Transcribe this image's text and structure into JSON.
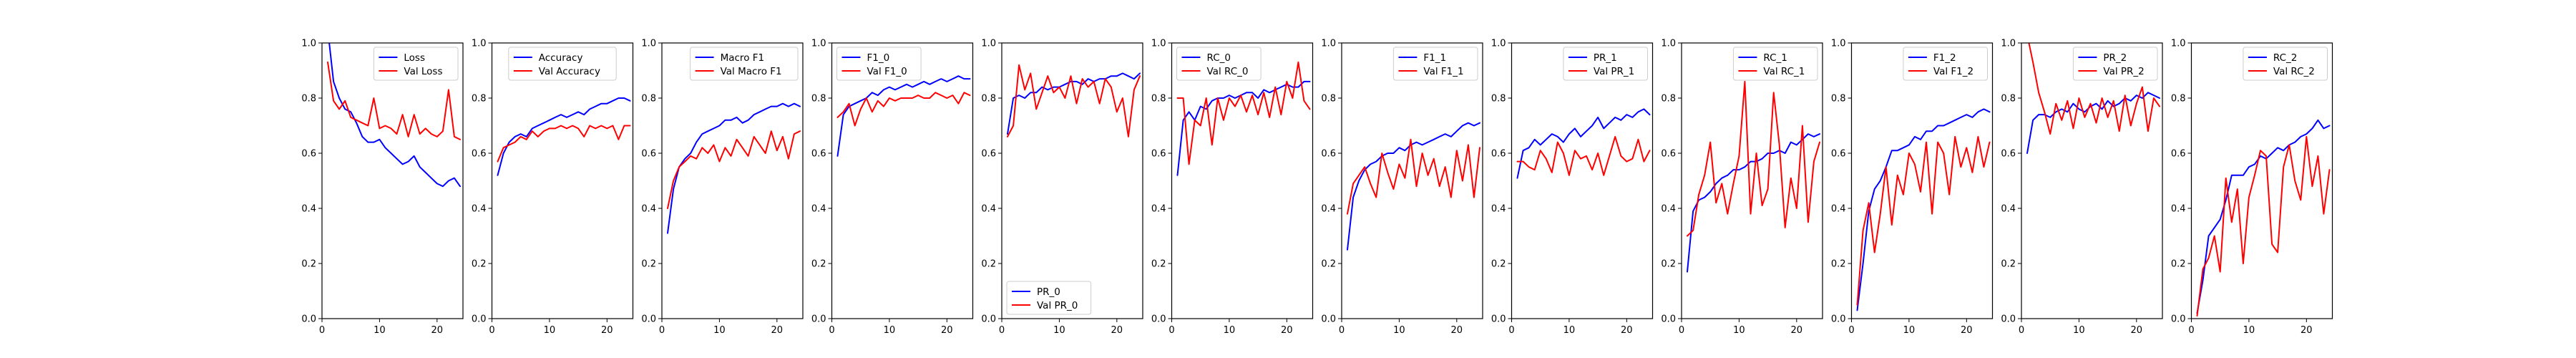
{
  "chart_data": [
    {
      "type": "line",
      "legend_loc": "upper right",
      "xlim": [
        0,
        24.5
      ],
      "ylim": [
        0.0,
        1.0
      ],
      "xticks": [
        0,
        10,
        20
      ],
      "yticks": [
        0.0,
        0.2,
        0.4,
        0.6,
        0.8,
        1.0
      ],
      "xticklabels": [
        "0",
        "10",
        "20"
      ],
      "yticklabels": [
        "0.0",
        "0.2",
        "0.4",
        "0.6",
        "0.8",
        "1.0"
      ],
      "series": [
        {
          "name": "Loss",
          "color": "#0000ff",
          "y": [
            1.05,
            0.86,
            0.8,
            0.76,
            0.75,
            0.71,
            0.66,
            0.64,
            0.64,
            0.65,
            0.62,
            0.6,
            0.58,
            0.56,
            0.57,
            0.59,
            0.55,
            0.53,
            0.51,
            0.49,
            0.48,
            0.5,
            0.51,
            0.48
          ]
        },
        {
          "name": "Val Loss",
          "color": "#ff0000",
          "y": [
            0.93,
            0.79,
            0.76,
            0.79,
            0.73,
            0.72,
            0.71,
            0.7,
            0.8,
            0.69,
            0.7,
            0.69,
            0.67,
            0.74,
            0.66,
            0.74,
            0.67,
            0.69,
            0.67,
            0.66,
            0.68,
            0.83,
            0.66,
            0.65
          ]
        }
      ]
    },
    {
      "type": "line",
      "legend_loc": "upper center",
      "xlim": [
        0,
        24.5
      ],
      "ylim": [
        0.0,
        1.0
      ],
      "xticks": [
        0,
        10,
        20
      ],
      "yticks": [
        0.0,
        0.2,
        0.4,
        0.6,
        0.8,
        1.0
      ],
      "xticklabels": [
        "0",
        "10",
        "20"
      ],
      "yticklabels": [
        "0.0",
        "0.2",
        "0.4",
        "0.6",
        "0.8",
        "1.0"
      ],
      "series": [
        {
          "name": "Accuracy",
          "color": "#0000ff",
          "y": [
            0.52,
            0.6,
            0.64,
            0.66,
            0.67,
            0.66,
            0.69,
            0.7,
            0.71,
            0.72,
            0.73,
            0.74,
            0.73,
            0.74,
            0.75,
            0.74,
            0.76,
            0.77,
            0.78,
            0.78,
            0.79,
            0.8,
            0.8,
            0.79
          ]
        },
        {
          "name": "Val Accuracy",
          "color": "#ff0000",
          "y": [
            0.57,
            0.62,
            0.63,
            0.64,
            0.66,
            0.65,
            0.68,
            0.66,
            0.68,
            0.69,
            0.69,
            0.7,
            0.69,
            0.7,
            0.69,
            0.66,
            0.7,
            0.69,
            0.7,
            0.69,
            0.7,
            0.65,
            0.7,
            0.7
          ]
        }
      ]
    },
    {
      "type": "line",
      "legend_loc": "upper right",
      "xlim": [
        0,
        24.5
      ],
      "ylim": [
        0.0,
        1.0
      ],
      "xticks": [
        0,
        10,
        20
      ],
      "yticks": [
        0.0,
        0.2,
        0.4,
        0.6,
        0.8,
        1.0
      ],
      "xticklabels": [
        "0",
        "10",
        "20"
      ],
      "yticklabels": [
        "0.0",
        "0.2",
        "0.4",
        "0.6",
        "0.8",
        "1.0"
      ],
      "series": [
        {
          "name": "Macro F1",
          "color": "#0000ff",
          "y": [
            0.31,
            0.47,
            0.55,
            0.58,
            0.6,
            0.64,
            0.67,
            0.68,
            0.69,
            0.7,
            0.72,
            0.72,
            0.73,
            0.71,
            0.72,
            0.74,
            0.75,
            0.76,
            0.77,
            0.77,
            0.78,
            0.77,
            0.78,
            0.77
          ]
        },
        {
          "name": "Val Macro F1",
          "color": "#ff0000",
          "y": [
            0.4,
            0.5,
            0.55,
            0.57,
            0.59,
            0.58,
            0.62,
            0.6,
            0.63,
            0.57,
            0.62,
            0.59,
            0.65,
            0.62,
            0.59,
            0.66,
            0.63,
            0.6,
            0.68,
            0.61,
            0.66,
            0.58,
            0.67,
            0.68
          ]
        }
      ]
    },
    {
      "type": "line",
      "legend_loc": "upper left",
      "xlim": [
        0,
        24.5
      ],
      "ylim": [
        0.0,
        1.0
      ],
      "xticks": [
        0,
        10,
        20
      ],
      "yticks": [
        0.0,
        0.2,
        0.4,
        0.6,
        0.8,
        1.0
      ],
      "xticklabels": [
        "0",
        "10",
        "20"
      ],
      "yticklabels": [
        "0.0",
        "0.2",
        "0.4",
        "0.6",
        "0.8",
        "1.0"
      ],
      "series": [
        {
          "name": "F1_0",
          "color": "#0000ff",
          "y": [
            0.59,
            0.74,
            0.77,
            0.78,
            0.79,
            0.8,
            0.82,
            0.81,
            0.83,
            0.84,
            0.83,
            0.84,
            0.85,
            0.84,
            0.85,
            0.86,
            0.85,
            0.86,
            0.87,
            0.86,
            0.87,
            0.88,
            0.87,
            0.87
          ]
        },
        {
          "name": "Val F1_0",
          "color": "#ff0000",
          "y": [
            0.73,
            0.75,
            0.78,
            0.7,
            0.76,
            0.8,
            0.75,
            0.79,
            0.77,
            0.8,
            0.79,
            0.8,
            0.8,
            0.8,
            0.81,
            0.8,
            0.8,
            0.82,
            0.81,
            0.8,
            0.81,
            0.78,
            0.82,
            0.81
          ]
        }
      ]
    },
    {
      "type": "line",
      "legend_loc": "lower left",
      "xlim": [
        0,
        24.5
      ],
      "ylim": [
        0.0,
        1.0
      ],
      "xticks": [
        0,
        10,
        20
      ],
      "yticks": [
        0.0,
        0.2,
        0.4,
        0.6,
        0.8,
        1.0
      ],
      "xticklabels": [
        "0",
        "10",
        "20"
      ],
      "yticklabels": [
        "0.0",
        "0.2",
        "0.4",
        "0.6",
        "0.8",
        "1.0"
      ],
      "series": [
        {
          "name": "PR_0",
          "color": "#0000ff",
          "y": [
            0.67,
            0.8,
            0.81,
            0.8,
            0.82,
            0.82,
            0.84,
            0.83,
            0.84,
            0.84,
            0.85,
            0.86,
            0.86,
            0.85,
            0.87,
            0.86,
            0.87,
            0.87,
            0.88,
            0.88,
            0.89,
            0.88,
            0.87,
            0.89
          ]
        },
        {
          "name": "Val PR_0",
          "color": "#ff0000",
          "y": [
            0.66,
            0.7,
            0.92,
            0.83,
            0.89,
            0.76,
            0.82,
            0.88,
            0.82,
            0.84,
            0.8,
            0.88,
            0.78,
            0.87,
            0.84,
            0.86,
            0.78,
            0.87,
            0.84,
            0.75,
            0.8,
            0.66,
            0.83,
            0.88
          ]
        }
      ]
    },
    {
      "type": "line",
      "legend_loc": "upper left",
      "xlim": [
        0,
        24.5
      ],
      "ylim": [
        0.0,
        1.0
      ],
      "xticks": [
        0,
        10,
        20
      ],
      "yticks": [
        0.0,
        0.2,
        0.4,
        0.6,
        0.8,
        1.0
      ],
      "xticklabels": [
        "0",
        "10",
        "20"
      ],
      "yticklabels": [
        "0.0",
        "0.2",
        "0.4",
        "0.6",
        "0.8",
        "1.0"
      ],
      "series": [
        {
          "name": "RC_0",
          "color": "#0000ff",
          "y": [
            0.52,
            0.72,
            0.75,
            0.72,
            0.77,
            0.76,
            0.79,
            0.8,
            0.8,
            0.81,
            0.8,
            0.81,
            0.82,
            0.82,
            0.8,
            0.83,
            0.82,
            0.83,
            0.84,
            0.85,
            0.84,
            0.84,
            0.86,
            0.86
          ]
        },
        {
          "name": "Val RC_0",
          "color": "#ff0000",
          "y": [
            0.8,
            0.8,
            0.56,
            0.72,
            0.7,
            0.8,
            0.63,
            0.8,
            0.72,
            0.8,
            0.77,
            0.81,
            0.75,
            0.81,
            0.74,
            0.82,
            0.73,
            0.84,
            0.74,
            0.86,
            0.8,
            0.93,
            0.79,
            0.76
          ]
        }
      ]
    },
    {
      "type": "line",
      "legend_loc": "upper right",
      "xlim": [
        0,
        24.5
      ],
      "ylim": [
        0.0,
        1.0
      ],
      "xticks": [
        0,
        10,
        20
      ],
      "yticks": [
        0.0,
        0.2,
        0.4,
        0.6,
        0.8,
        1.0
      ],
      "xticklabels": [
        "0",
        "10",
        "20"
      ],
      "yticklabels": [
        "0.0",
        "0.2",
        "0.4",
        "0.6",
        "0.8",
        "1.0"
      ],
      "series": [
        {
          "name": "F1_1",
          "color": "#0000ff",
          "y": [
            0.25,
            0.44,
            0.5,
            0.54,
            0.56,
            0.57,
            0.59,
            0.6,
            0.6,
            0.62,
            0.61,
            0.63,
            0.64,
            0.63,
            0.64,
            0.65,
            0.66,
            0.67,
            0.66,
            0.68,
            0.7,
            0.71,
            0.7,
            0.71
          ]
        },
        {
          "name": "Val F1_1",
          "color": "#ff0000",
          "y": [
            0.38,
            0.49,
            0.52,
            0.55,
            0.49,
            0.44,
            0.6,
            0.53,
            0.47,
            0.56,
            0.51,
            0.65,
            0.48,
            0.6,
            0.52,
            0.58,
            0.48,
            0.55,
            0.44,
            0.61,
            0.5,
            0.63,
            0.44,
            0.62
          ]
        }
      ]
    },
    {
      "type": "line",
      "legend_loc": "upper right",
      "xlim": [
        0,
        24.5
      ],
      "ylim": [
        0.0,
        1.0
      ],
      "xticks": [
        0,
        10,
        20
      ],
      "yticks": [
        0.0,
        0.2,
        0.4,
        0.6,
        0.8,
        1.0
      ],
      "xticklabels": [
        "0",
        "10",
        "20"
      ],
      "yticklabels": [
        "0.0",
        "0.2",
        "0.4",
        "0.6",
        "0.8",
        "1.0"
      ],
      "series": [
        {
          "name": "PR_1",
          "color": "#0000ff",
          "y": [
            0.51,
            0.61,
            0.62,
            0.65,
            0.63,
            0.65,
            0.67,
            0.66,
            0.64,
            0.67,
            0.69,
            0.66,
            0.68,
            0.7,
            0.73,
            0.69,
            0.71,
            0.73,
            0.72,
            0.74,
            0.73,
            0.75,
            0.76,
            0.74
          ]
        },
        {
          "name": "Val PR_1",
          "color": "#ff0000",
          "y": [
            0.57,
            0.57,
            0.55,
            0.54,
            0.61,
            0.58,
            0.53,
            0.64,
            0.6,
            0.52,
            0.61,
            0.58,
            0.59,
            0.54,
            0.6,
            0.52,
            0.59,
            0.66,
            0.59,
            0.57,
            0.58,
            0.65,
            0.57,
            0.61
          ]
        }
      ]
    },
    {
      "type": "line",
      "legend_loc": "upper right",
      "xlim": [
        0,
        24.5
      ],
      "ylim": [
        0.0,
        1.0
      ],
      "xticks": [
        0,
        10,
        20
      ],
      "yticks": [
        0.0,
        0.2,
        0.4,
        0.6,
        0.8,
        1.0
      ],
      "xticklabels": [
        "0",
        "10",
        "20"
      ],
      "yticklabels": [
        "0.0",
        "0.2",
        "0.4",
        "0.6",
        "0.8",
        "1.0"
      ],
      "series": [
        {
          "name": "RC_1",
          "color": "#0000ff",
          "y": [
            0.17,
            0.39,
            0.43,
            0.44,
            0.46,
            0.49,
            0.51,
            0.52,
            0.54,
            0.54,
            0.55,
            0.57,
            0.57,
            0.58,
            0.6,
            0.6,
            0.61,
            0.6,
            0.64,
            0.63,
            0.65,
            0.67,
            0.66,
            0.67
          ]
        },
        {
          "name": "Val RC_1",
          "color": "#ff0000",
          "y": [
            0.3,
            0.32,
            0.45,
            0.52,
            0.64,
            0.42,
            0.49,
            0.38,
            0.49,
            0.59,
            0.86,
            0.38,
            0.6,
            0.41,
            0.47,
            0.82,
            0.63,
            0.33,
            0.51,
            0.4,
            0.7,
            0.35,
            0.57,
            0.64
          ]
        }
      ]
    },
    {
      "type": "line",
      "legend_loc": "upper right",
      "xlim": [
        0,
        24.5
      ],
      "ylim": [
        0.0,
        1.0
      ],
      "xticks": [
        0,
        10,
        20
      ],
      "yticks": [
        0.0,
        0.2,
        0.4,
        0.6,
        0.8,
        1.0
      ],
      "xticklabels": [
        "0",
        "10",
        "20"
      ],
      "yticklabels": [
        "0.0",
        "0.2",
        "0.4",
        "0.6",
        "0.8",
        "1.0"
      ],
      "series": [
        {
          "name": "F1_2",
          "color": "#0000ff",
          "y": [
            0.03,
            0.2,
            0.39,
            0.47,
            0.5,
            0.55,
            0.61,
            0.61,
            0.62,
            0.63,
            0.66,
            0.65,
            0.68,
            0.68,
            0.7,
            0.7,
            0.71,
            0.72,
            0.73,
            0.74,
            0.73,
            0.75,
            0.76,
            0.75
          ]
        },
        {
          "name": "Val F1_2",
          "color": "#ff0000",
          "y": [
            0.05,
            0.32,
            0.42,
            0.24,
            0.38,
            0.55,
            0.34,
            0.52,
            0.45,
            0.6,
            0.56,
            0.46,
            0.64,
            0.38,
            0.64,
            0.6,
            0.45,
            0.66,
            0.55,
            0.62,
            0.53,
            0.66,
            0.55,
            0.64
          ]
        }
      ]
    },
    {
      "type": "line",
      "legend_loc": "upper right",
      "xlim": [
        0,
        24.5
      ],
      "ylim": [
        0.0,
        1.0
      ],
      "xticks": [
        0,
        10,
        20
      ],
      "yticks": [
        0.0,
        0.2,
        0.4,
        0.6,
        0.8,
        1.0
      ],
      "xticklabels": [
        "0",
        "10",
        "20"
      ],
      "yticklabels": [
        "0.0",
        "0.2",
        "0.4",
        "0.6",
        "0.8",
        "1.0"
      ],
      "series": [
        {
          "name": "PR_2",
          "color": "#0000ff",
          "y": [
            0.6,
            0.72,
            0.74,
            0.74,
            0.73,
            0.75,
            0.76,
            0.75,
            0.78,
            0.76,
            0.75,
            0.77,
            0.78,
            0.76,
            0.79,
            0.77,
            0.78,
            0.8,
            0.79,
            0.81,
            0.8,
            0.82,
            0.81,
            0.8
          ]
        },
        {
          "name": "Val PR_2",
          "color": "#ff0000",
          "y": [
            1.03,
            0.93,
            0.82,
            0.75,
            0.67,
            0.78,
            0.72,
            0.79,
            0.69,
            0.8,
            0.73,
            0.78,
            0.71,
            0.8,
            0.73,
            0.79,
            0.68,
            0.81,
            0.7,
            0.78,
            0.84,
            0.68,
            0.8,
            0.77
          ]
        }
      ]
    },
    {
      "type": "line",
      "legend_loc": "upper right",
      "xlim": [
        0,
        24.5
      ],
      "ylim": [
        0.0,
        1.0
      ],
      "xticks": [
        0,
        10,
        20
      ],
      "yticks": [
        0.0,
        0.2,
        0.4,
        0.6,
        0.8,
        1.0
      ],
      "xticklabels": [
        "0",
        "10",
        "20"
      ],
      "yticklabels": [
        "0.0",
        "0.2",
        "0.4",
        "0.6",
        "0.8",
        "1.0"
      ],
      "series": [
        {
          "name": "RC_2",
          "color": "#0000ff",
          "y": [
            0.02,
            0.14,
            0.3,
            0.33,
            0.36,
            0.43,
            0.52,
            0.52,
            0.52,
            0.55,
            0.56,
            0.59,
            0.58,
            0.6,
            0.62,
            0.61,
            0.63,
            0.64,
            0.66,
            0.67,
            0.69,
            0.72,
            0.69,
            0.7
          ]
        },
        {
          "name": "Val RC_2",
          "color": "#ff0000",
          "y": [
            0.01,
            0.18,
            0.22,
            0.3,
            0.17,
            0.51,
            0.35,
            0.47,
            0.2,
            0.44,
            0.52,
            0.61,
            0.59,
            0.27,
            0.24,
            0.55,
            0.63,
            0.5,
            0.43,
            0.66,
            0.48,
            0.59,
            0.38,
            0.54
          ]
        }
      ]
    }
  ]
}
